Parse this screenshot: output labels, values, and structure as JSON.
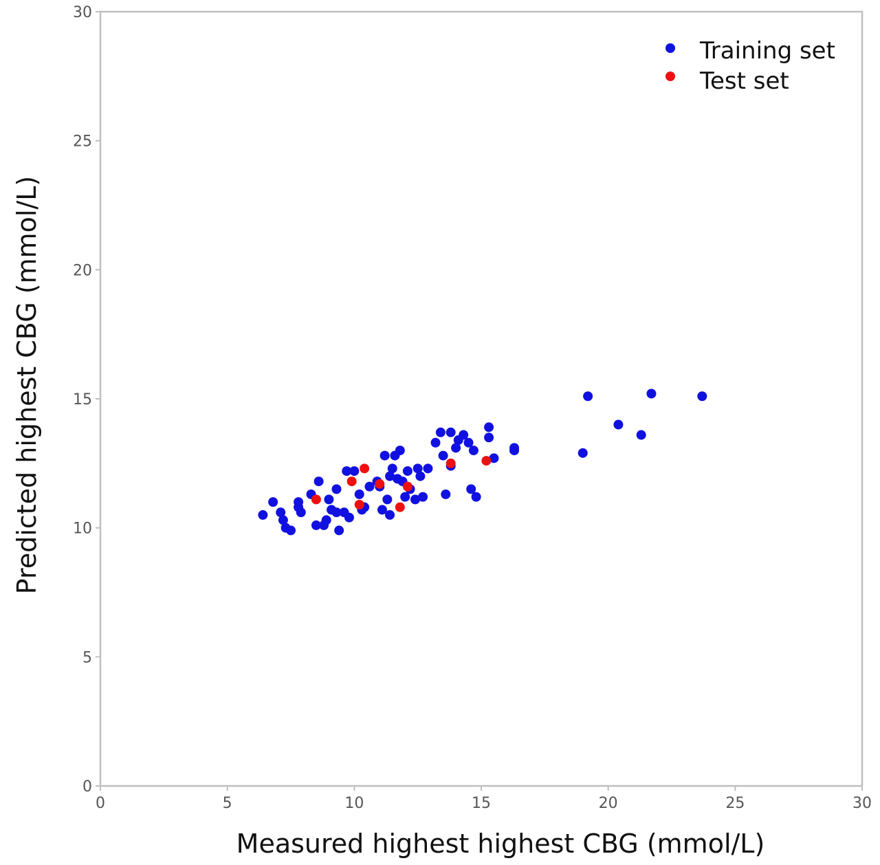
{
  "chart_data": {
    "type": "scatter",
    "title": "",
    "xlabel": "Measured highest highest CBG (mmol/L)",
    "ylabel": "Predicted highest CBG (mmol/L)",
    "xlim": [
      0,
      30
    ],
    "ylim": [
      0,
      30
    ],
    "xticks": [
      0,
      5,
      10,
      15,
      20,
      25,
      30
    ],
    "yticks": [
      0,
      5,
      10,
      15,
      20,
      25,
      30
    ],
    "grid": false,
    "legend_position": "top-right",
    "series": [
      {
        "name": "Training set",
        "color": "#1010e0",
        "points": [
          {
            "x": 6.4,
            "y": 10.5
          },
          {
            "x": 6.8,
            "y": 11.0
          },
          {
            "x": 7.1,
            "y": 10.6
          },
          {
            "x": 7.2,
            "y": 10.3
          },
          {
            "x": 7.3,
            "y": 10.0
          },
          {
            "x": 7.5,
            "y": 9.9
          },
          {
            "x": 7.8,
            "y": 11.0
          },
          {
            "x": 7.8,
            "y": 10.8
          },
          {
            "x": 7.9,
            "y": 10.6
          },
          {
            "x": 8.3,
            "y": 11.3
          },
          {
            "x": 8.5,
            "y": 10.1
          },
          {
            "x": 8.6,
            "y": 11.8
          },
          {
            "x": 8.8,
            "y": 10.1
          },
          {
            "x": 8.9,
            "y": 10.3
          },
          {
            "x": 9.0,
            "y": 11.1
          },
          {
            "x": 9.1,
            "y": 10.7
          },
          {
            "x": 9.3,
            "y": 10.6
          },
          {
            "x": 9.3,
            "y": 11.5
          },
          {
            "x": 9.4,
            "y": 9.9
          },
          {
            "x": 9.6,
            "y": 10.6
          },
          {
            "x": 9.7,
            "y": 12.2
          },
          {
            "x": 9.8,
            "y": 10.4
          },
          {
            "x": 10.0,
            "y": 12.2
          },
          {
            "x": 10.2,
            "y": 11.3
          },
          {
            "x": 10.3,
            "y": 10.7
          },
          {
            "x": 10.4,
            "y": 10.8
          },
          {
            "x": 10.6,
            "y": 11.6
          },
          {
            "x": 10.9,
            "y": 11.8
          },
          {
            "x": 11.0,
            "y": 11.6
          },
          {
            "x": 11.1,
            "y": 10.7
          },
          {
            "x": 11.2,
            "y": 12.8
          },
          {
            "x": 11.3,
            "y": 11.1
          },
          {
            "x": 11.4,
            "y": 10.5
          },
          {
            "x": 11.4,
            "y": 12.0
          },
          {
            "x": 11.5,
            "y": 12.3
          },
          {
            "x": 11.6,
            "y": 12.8
          },
          {
            "x": 11.7,
            "y": 11.9
          },
          {
            "x": 11.8,
            "y": 13.0
          },
          {
            "x": 11.9,
            "y": 11.8
          },
          {
            "x": 12.0,
            "y": 11.2
          },
          {
            "x": 12.1,
            "y": 12.2
          },
          {
            "x": 12.2,
            "y": 11.5
          },
          {
            "x": 12.4,
            "y": 11.1
          },
          {
            "x": 12.5,
            "y": 12.3
          },
          {
            "x": 12.6,
            "y": 12.0
          },
          {
            "x": 12.7,
            "y": 11.2
          },
          {
            "x": 12.9,
            "y": 12.3
          },
          {
            "x": 13.2,
            "y": 13.3
          },
          {
            "x": 13.4,
            "y": 13.7
          },
          {
            "x": 13.5,
            "y": 12.8
          },
          {
            "x": 13.6,
            "y": 11.3
          },
          {
            "x": 13.8,
            "y": 13.7
          },
          {
            "x": 13.8,
            "y": 12.4
          },
          {
            "x": 14.0,
            "y": 13.1
          },
          {
            "x": 14.1,
            "y": 13.4
          },
          {
            "x": 14.3,
            "y": 13.6
          },
          {
            "x": 14.5,
            "y": 13.3
          },
          {
            "x": 14.6,
            "y": 11.5
          },
          {
            "x": 14.7,
            "y": 13.0
          },
          {
            "x": 14.8,
            "y": 11.2
          },
          {
            "x": 15.3,
            "y": 13.9
          },
          {
            "x": 15.3,
            "y": 13.5
          },
          {
            "x": 15.5,
            "y": 12.7
          },
          {
            "x": 16.3,
            "y": 13.0
          },
          {
            "x": 16.3,
            "y": 13.1
          },
          {
            "x": 19.0,
            "y": 12.9
          },
          {
            "x": 19.2,
            "y": 15.1
          },
          {
            "x": 20.4,
            "y": 14.0
          },
          {
            "x": 21.3,
            "y": 13.6
          },
          {
            "x": 21.7,
            "y": 15.2
          },
          {
            "x": 23.7,
            "y": 15.1
          }
        ]
      },
      {
        "name": "Test set",
        "color": "#ee1010",
        "points": [
          {
            "x": 8.5,
            "y": 11.1
          },
          {
            "x": 9.9,
            "y": 11.8
          },
          {
            "x": 10.2,
            "y": 10.9
          },
          {
            "x": 10.4,
            "y": 12.3
          },
          {
            "x": 11.0,
            "y": 11.7
          },
          {
            "x": 11.8,
            "y": 10.8
          },
          {
            "x": 12.1,
            "y": 11.6
          },
          {
            "x": 13.8,
            "y": 12.5
          },
          {
            "x": 15.2,
            "y": 12.6
          }
        ]
      }
    ]
  }
}
